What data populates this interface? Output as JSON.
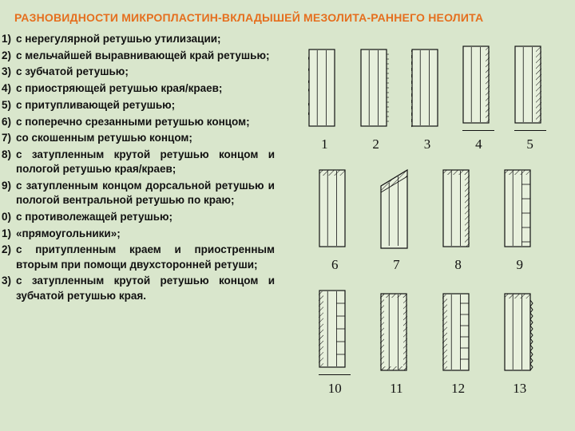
{
  "title": "РАЗНОВИДНОСТИ МИКРОПЛАСТИН-ВКЛАДЫШЕЙ МЕЗОЛИТА-РАННЕГО НЕОЛИТА",
  "items": [
    {
      "n": "1)",
      "t": "с нерегулярной ретушью утилизации;"
    },
    {
      "n": "2)",
      "t": "с мельчайшей выравнивающей край ретушью;"
    },
    {
      "n": "3)",
      "t": "с зубчатой ретушью;"
    },
    {
      "n": "4)",
      "t": "с приостряющей ретушью края/краев;"
    },
    {
      "n": "5)",
      "t": "с притупливающей ретушью;"
    },
    {
      "n": "6)",
      "t": "с поперечно срезанными ретушью концом;"
    },
    {
      "n": "7)",
      "t": "со скошенным ретушью концом;"
    },
    {
      "n": "8)",
      "t": "с затупленным крутой ретушью концом и пологой ретушью края/краев;"
    },
    {
      "n": "9)",
      "t": "с затупленным концом дорсальной ретушью и пологой вентральной ретушью по краю;"
    },
    {
      "n": "0)",
      "t": "с противолежащей ретушью;"
    },
    {
      "n": "1)",
      "t": "«прямоугольники»;"
    },
    {
      "n": "2)",
      "t": " с притупленным краем и приостренным вторым при помощи двухсторонней ретуши;"
    },
    {
      "n": "3)",
      "t": "с затупленным крутой ретушью концом и зубчатой ретушью края."
    }
  ],
  "figures": {
    "fill": "#e7f0dc",
    "stroke": "#111",
    "rows": [
      [
        "1",
        "2",
        "3",
        "4",
        "5"
      ],
      [
        "6",
        "7",
        "8",
        "9"
      ],
      [
        "10",
        "11",
        "12",
        "13"
      ]
    ],
    "underline": {
      "4": true,
      "5": true,
      "10": true
    }
  }
}
